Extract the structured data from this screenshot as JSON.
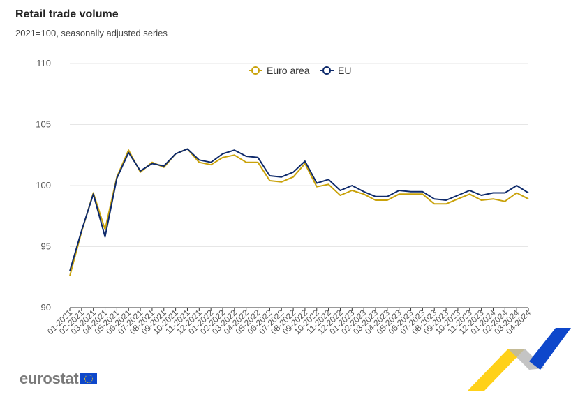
{
  "header": {
    "title": "Retail trade volume",
    "subtitle": "2021=100, seasonally adjusted series"
  },
  "logo": {
    "text": "eurostat",
    "flag_icon": "eu-flag-icon"
  },
  "colors": {
    "euro_area": "#c9a20a",
    "eu": "#0e2a6b",
    "grid": "#e6e6e6",
    "brand_yellow": "#ffcc00",
    "brand_blue": "#0e47cb",
    "brand_grey": "#b5b5b5"
  },
  "chart_data": {
    "type": "line",
    "title": "Retail trade volume",
    "subtitle": "2021=100, seasonally adjusted series",
    "xlabel": "",
    "ylabel": "",
    "ylim": [
      90,
      110
    ],
    "yticks": [
      90,
      95,
      100,
      105,
      110
    ],
    "grid": true,
    "legend_position": "top",
    "categories": [
      "01-2021",
      "02-2021",
      "03-2021",
      "04-2021",
      "05-2021",
      "06-2021",
      "07-2021",
      "08-2021",
      "09-2021",
      "10-2021",
      "11-2021",
      "12-2021",
      "01-2022",
      "02-2022",
      "03-2022",
      "04-2022",
      "05-2022",
      "06-2022",
      "07-2022",
      "08-2022",
      "09-2022",
      "10-2022",
      "11-2022",
      "12-2022",
      "01-2023",
      "02-2023",
      "03-2023",
      "04-2023",
      "05-2023",
      "06-2023",
      "07-2023",
      "08-2023",
      "09-2023",
      "10-2023",
      "11-2023",
      "12-2023",
      "01-2024",
      "02-2024",
      "03-2024",
      "04-2024"
    ],
    "series": [
      {
        "name": "Euro area",
        "color": "#c9a20a",
        "values": [
          92.6,
          96.2,
          99.4,
          96.4,
          100.7,
          102.9,
          101.1,
          101.9,
          101.5,
          102.6,
          103.0,
          101.9,
          101.7,
          102.3,
          102.5,
          101.9,
          101.9,
          100.4,
          100.3,
          100.7,
          101.8,
          99.9,
          100.1,
          99.2,
          99.6,
          99.3,
          98.8,
          98.8,
          99.3,
          99.3,
          99.3,
          98.5,
          98.5,
          98.9,
          99.3,
          98.8,
          98.9,
          98.7,
          99.4,
          98.9
        ]
      },
      {
        "name": "EU",
        "color": "#0e2a6b",
        "values": [
          93.0,
          96.3,
          99.3,
          95.8,
          100.6,
          102.7,
          101.2,
          101.8,
          101.6,
          102.6,
          103.0,
          102.1,
          101.9,
          102.6,
          102.9,
          102.4,
          102.3,
          100.8,
          100.7,
          101.1,
          102.0,
          100.2,
          100.5,
          99.6,
          100.0,
          99.5,
          99.1,
          99.1,
          99.6,
          99.5,
          99.5,
          98.9,
          98.8,
          99.2,
          99.6,
          99.2,
          99.4,
          99.4,
          100.0,
          99.4
        ]
      }
    ]
  }
}
